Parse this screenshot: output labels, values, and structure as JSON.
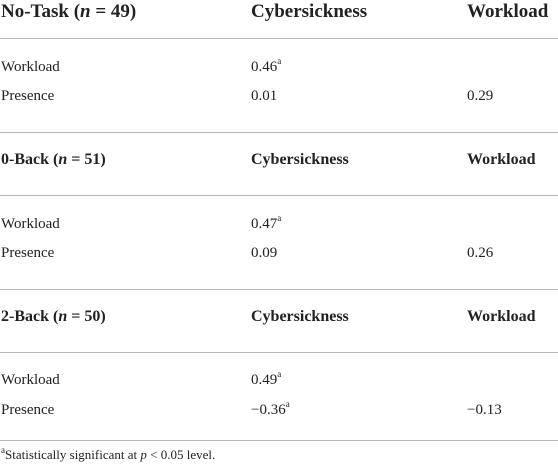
{
  "sections": [
    {
      "group": "No-Task",
      "n_label": "n",
      "n_value": " = 49)",
      "col1": "Cybersickness",
      "col2": "Workload",
      "rows": [
        {
          "label": "Workload",
          "cybersickness": "0.46",
          "cybersickness_mark": "a",
          "workload": ""
        },
        {
          "label": "Presence",
          "cybersickness": "0.01",
          "cybersickness_mark": "",
          "workload": "0.29"
        }
      ]
    },
    {
      "group": "0-Back",
      "n_label": "n",
      "n_value": " = 51)",
      "col1": "Cybersickness",
      "col2": "Workload",
      "rows": [
        {
          "label": "Workload",
          "cybersickness": "0.47",
          "cybersickness_mark": "a",
          "workload": ""
        },
        {
          "label": "Presence",
          "cybersickness": "0.09",
          "cybersickness_mark": "",
          "workload": "0.26"
        }
      ]
    },
    {
      "group": "2-Back",
      "n_label": "n",
      "n_value": " = 50)",
      "col1": "Cybersickness",
      "col2": "Workload",
      "rows": [
        {
          "label": "Workload",
          "cybersickness": "0.49",
          "cybersickness_mark": "a",
          "workload": ""
        },
        {
          "label": "Presence",
          "cybersickness": "−0.36",
          "cybersickness_mark": "a",
          "workload": "−0.13"
        }
      ]
    }
  ],
  "footnote": {
    "mark": "a",
    "text_before": "Statistically significant at ",
    "p_symbol": "p",
    "text_after": " < 0.05 level."
  }
}
